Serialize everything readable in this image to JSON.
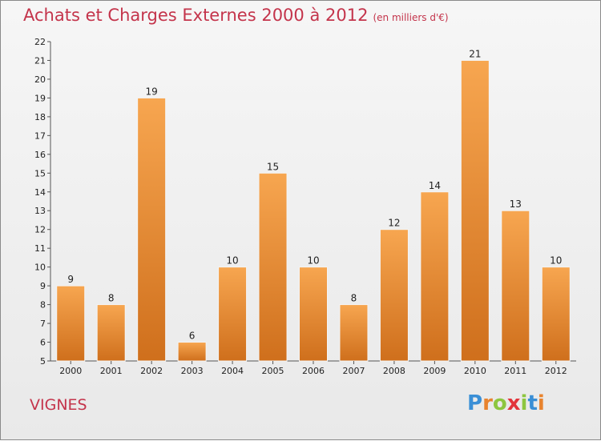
{
  "chart_data": {
    "type": "bar",
    "title": "Achats et Charges Externes 2000 à 2012",
    "subtitle": "(en milliers d'€)",
    "categories": [
      "2000",
      "2001",
      "2002",
      "2003",
      "2004",
      "2005",
      "2006",
      "2007",
      "2008",
      "2009",
      "2010",
      "2011",
      "2012"
    ],
    "values": [
      9,
      8,
      19,
      6,
      10,
      15,
      10,
      8,
      12,
      14,
      21,
      13,
      10
    ],
    "ylim": [
      5,
      22
    ],
    "yticks": [
      5,
      6,
      7,
      8,
      9,
      10,
      11,
      12,
      13,
      14,
      15,
      16,
      17,
      18,
      19,
      20,
      21,
      22
    ],
    "grid": false,
    "bar_color": "#e8832e",
    "title_color": "#c4344b"
  },
  "commune": "VIGNES",
  "logo": {
    "letters": [
      "P",
      "r",
      "o",
      "x",
      "i",
      "t",
      "i"
    ],
    "colors": [
      "#3a8fd6",
      "#e8832e",
      "#8dc63f",
      "#e2343b",
      "#8dc63f",
      "#3a8fd6",
      "#e8832e"
    ]
  }
}
